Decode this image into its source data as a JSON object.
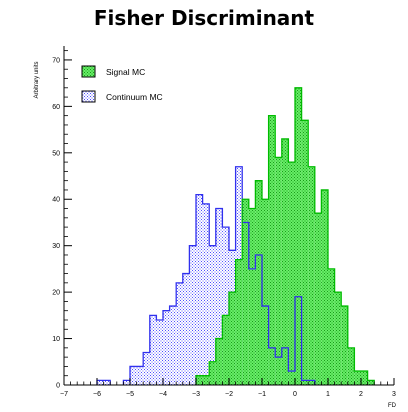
{
  "chart_data": {
    "type": "bar",
    "title": "Fisher Discriminant",
    "xlabel": "FD",
    "ylabel": "Arbitrary units",
    "xlim": [
      -7,
      3
    ],
    "ylim": [
      0,
      73
    ],
    "xticks": [
      -7,
      -6,
      -5,
      -4,
      -3,
      -2,
      -1,
      0,
      1,
      2,
      3
    ],
    "yticks": [
      0,
      10,
      20,
      30,
      40,
      50,
      60,
      70
    ],
    "grid": false,
    "legend_position": "top-left",
    "bin_width": 0.2,
    "series": [
      {
        "name": "Continuum MC",
        "color": "#4040ff",
        "fill": "#c8c8f8",
        "bins": [
          {
            "x": -6.0,
            "y": 1
          },
          {
            "x": -5.8,
            "y": 1
          },
          {
            "x": -5.2,
            "y": 1
          },
          {
            "x": -5.0,
            "y": 4
          },
          {
            "x": -4.8,
            "y": 4
          },
          {
            "x": -4.6,
            "y": 7
          },
          {
            "x": -4.4,
            "y": 15
          },
          {
            "x": -4.2,
            "y": 14
          },
          {
            "x": -4.0,
            "y": 16
          },
          {
            "x": -3.8,
            "y": 17
          },
          {
            "x": -3.6,
            "y": 22
          },
          {
            "x": -3.4,
            "y": 24
          },
          {
            "x": -3.2,
            "y": 30
          },
          {
            "x": -3.0,
            "y": 41
          },
          {
            "x": -2.8,
            "y": 39
          },
          {
            "x": -2.6,
            "y": 30
          },
          {
            "x": -2.4,
            "y": 38
          },
          {
            "x": -2.2,
            "y": 34
          },
          {
            "x": -2.0,
            "y": 29
          },
          {
            "x": -1.8,
            "y": 47
          },
          {
            "x": -1.6,
            "y": 35
          },
          {
            "x": -1.4,
            "y": 25
          },
          {
            "x": -1.2,
            "y": 28
          },
          {
            "x": -1.0,
            "y": 17
          },
          {
            "x": -0.8,
            "y": 8
          },
          {
            "x": -0.6,
            "y": 6
          },
          {
            "x": -0.4,
            "y": 8
          },
          {
            "x": -0.2,
            "y": 3
          },
          {
            "x": 0.0,
            "y": 19
          },
          {
            "x": 0.2,
            "y": 1
          },
          {
            "x": 0.4,
            "y": 1
          }
        ]
      },
      {
        "name": "Signal MC",
        "color": "#00cc00",
        "fill": "#66ee66",
        "bins": [
          {
            "x": -3.0,
            "y": 2
          },
          {
            "x": -2.8,
            "y": 2
          },
          {
            "x": -2.6,
            "y": 5
          },
          {
            "x": -2.4,
            "y": 10
          },
          {
            "x": -2.2,
            "y": 15
          },
          {
            "x": -2.0,
            "y": 20
          },
          {
            "x": -1.8,
            "y": 27
          },
          {
            "x": -1.6,
            "y": 40
          },
          {
            "x": -1.4,
            "y": 38
          },
          {
            "x": -1.2,
            "y": 44
          },
          {
            "x": -1.0,
            "y": 40
          },
          {
            "x": -0.8,
            "y": 58
          },
          {
            "x": -0.6,
            "y": 49
          },
          {
            "x": -0.4,
            "y": 53
          },
          {
            "x": -0.2,
            "y": 48
          },
          {
            "x": 0.0,
            "y": 64
          },
          {
            "x": 0.2,
            "y": 57
          },
          {
            "x": 0.4,
            "y": 47
          },
          {
            "x": 0.6,
            "y": 37
          },
          {
            "x": 0.8,
            "y": 42
          },
          {
            "x": 1.0,
            "y": 25
          },
          {
            "x": 1.2,
            "y": 20
          },
          {
            "x": 1.4,
            "y": 17
          },
          {
            "x": 1.6,
            "y": 8
          },
          {
            "x": 1.8,
            "y": 3
          },
          {
            "x": 2.0,
            "y": 3
          },
          {
            "x": 2.2,
            "y": 1
          }
        ]
      }
    ]
  }
}
